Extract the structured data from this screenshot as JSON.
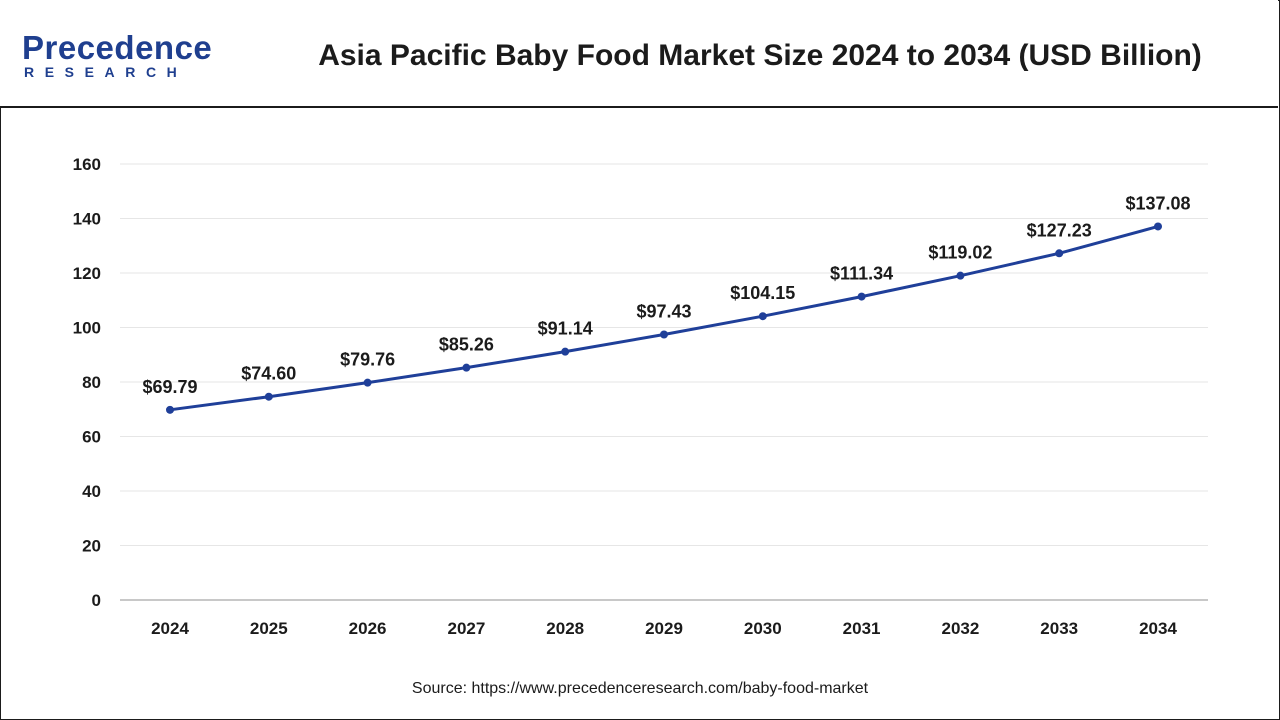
{
  "header": {
    "logo_word": "Precedence",
    "logo_sub": "RESEARCH",
    "title": "Asia Pacific Baby Food Market Size 2024 to 2034 (USD Billion)"
  },
  "source": "Source: https://www.precedenceresearch.com/baby-food-market",
  "colors": {
    "line": "#1f3f99",
    "brand": "#1f3f8f",
    "grid": "#e6e6e6"
  },
  "chart_data": {
    "type": "line",
    "title": "Asia Pacific Baby Food Market Size 2024 to 2034 (USD Billion)",
    "xlabel": "",
    "ylabel": "",
    "categories": [
      "2024",
      "2025",
      "2026",
      "2027",
      "2028",
      "2029",
      "2030",
      "2031",
      "2032",
      "2033",
      "2034"
    ],
    "series": [
      {
        "values": [
          69.79,
          74.6,
          79.76,
          85.26,
          91.14,
          97.43,
          104.15,
          111.34,
          119.02,
          127.23,
          137.08
        ],
        "labels": [
          "$69.79",
          "$74.60",
          "$79.76",
          "$85.26",
          "$91.14",
          "$97.43",
          "$104.15",
          "$111.34",
          "$119.02",
          "$127.23",
          "$137.08"
        ]
      }
    ],
    "ylim": [
      0,
      160
    ],
    "yticks": [
      "0",
      "20",
      "40",
      "60",
      "80",
      "100",
      "120",
      "140",
      "160"
    ],
    "grid": true,
    "legend": "none"
  }
}
